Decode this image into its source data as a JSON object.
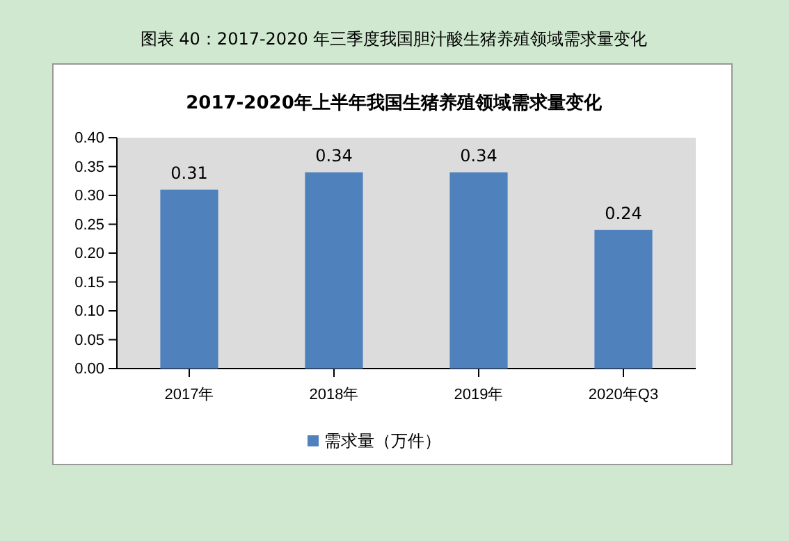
{
  "chart_data": {
    "type": "bar",
    "title": "图表 40：2017-2020 年三季度我国胆汁酸生猪养殖领域需求量变化",
    "subtitle": "2017-2020年上半年我国生猪养殖领域需求量变化",
    "categories": [
      "2017年",
      "2018年",
      "2019年",
      "2020年Q3"
    ],
    "series": [
      {
        "name": "需求量（万件）",
        "color": "#4f81bd",
        "values": [
          0.31,
          0.34,
          0.34,
          0.24
        ]
      }
    ],
    "ylim": [
      0,
      0.4
    ],
    "yticks": [
      {
        "value": 0,
        "label": "0.00"
      },
      {
        "value": 0.05,
        "label": "0.05"
      },
      {
        "value": 0.1,
        "label": "0.10"
      },
      {
        "value": 0.15,
        "label": "0.15"
      },
      {
        "value": 0.2,
        "label": "0.20"
      },
      {
        "value": 0.25,
        "label": "0.25"
      },
      {
        "value": 0.3,
        "label": "0.30"
      },
      {
        "value": 0.35,
        "label": "0.35"
      },
      {
        "value": 0.4,
        "label": "0.40"
      }
    ],
    "data_labels": true,
    "legend": "bottom",
    "grid": false
  }
}
